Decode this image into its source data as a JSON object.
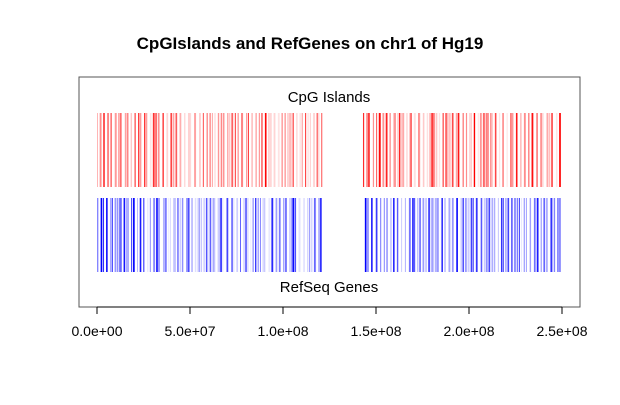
{
  "chart_data": {
    "type": "heatmap",
    "title": "CpGIslands and RefGenes on chr1 of Hg19",
    "xlabel": "",
    "ylabel": "",
    "xlim": [
      0,
      250000000
    ],
    "x_ticks": [
      {
        "value": 0,
        "label": "0.0e+00"
      },
      {
        "value": 50000000,
        "label": "5.0e+07"
      },
      {
        "value": 100000000,
        "label": "1.0e+08"
      },
      {
        "value": 150000000,
        "label": "1.5e+08"
      },
      {
        "value": 200000000,
        "label": "2.0e+08"
      },
      {
        "value": 250000000,
        "label": "2.5e+08"
      }
    ],
    "grid": false,
    "legend": "none",
    "tracks": [
      {
        "name": "CpG Islands",
        "label_position": "top",
        "color": "#ff0000",
        "regions": [
          [
            0,
            121000000
          ],
          [
            143000000,
            249000000
          ]
        ]
      },
      {
        "name": "RefSeq Genes",
        "label_position": "bottom",
        "color": "#0000ff",
        "regions": [
          [
            0,
            121000000
          ],
          [
            144000000,
            249200000
          ]
        ]
      }
    ]
  }
}
